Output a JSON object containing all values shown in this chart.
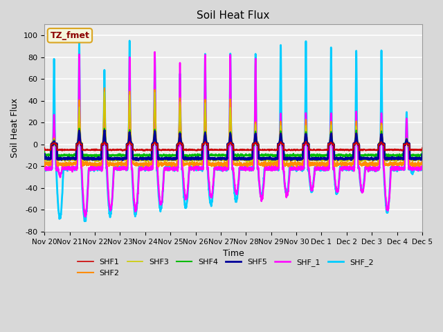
{
  "title": "Soil Heat Flux",
  "xlabel": "Time",
  "ylabel": "Soil Heat Flux",
  "ylim": [
    -80,
    110
  ],
  "yticks": [
    -80,
    -60,
    -40,
    -20,
    0,
    20,
    40,
    60,
    80,
    100
  ],
  "xtick_labels": [
    "Nov 20",
    "Nov 21",
    "Nov 22",
    "Nov 23",
    "Nov 24",
    "Nov 25",
    "Nov 26",
    "Nov 27",
    "Nov 28",
    "Nov 29",
    "Nov 30",
    "Dec 1",
    "Dec 2",
    "Dec 3",
    "Dec 4",
    "Dec 5"
  ],
  "annotation_text": "TZ_fmet",
  "annotation_color": "#8B0000",
  "annotation_bg": "#F5F5DC",
  "annotation_border": "#DAA520",
  "series_colors": {
    "SHF1": "#CC0000",
    "SHF2": "#FF8C00",
    "SHF3": "#CCCC00",
    "SHF4": "#00BB00",
    "SHF5": "#000099",
    "SHF_1": "#FF00FF",
    "SHF_2": "#00CCFF"
  },
  "series_linewidths": {
    "SHF1": 1.2,
    "SHF2": 1.5,
    "SHF3": 1.2,
    "SHF4": 1.5,
    "SHF5": 2.0,
    "SHF_1": 1.8,
    "SHF_2": 2.0
  },
  "bg_color": "#D8D8D8",
  "plot_bg": "#EBEBEB",
  "n_days": 15,
  "points_per_day": 288
}
